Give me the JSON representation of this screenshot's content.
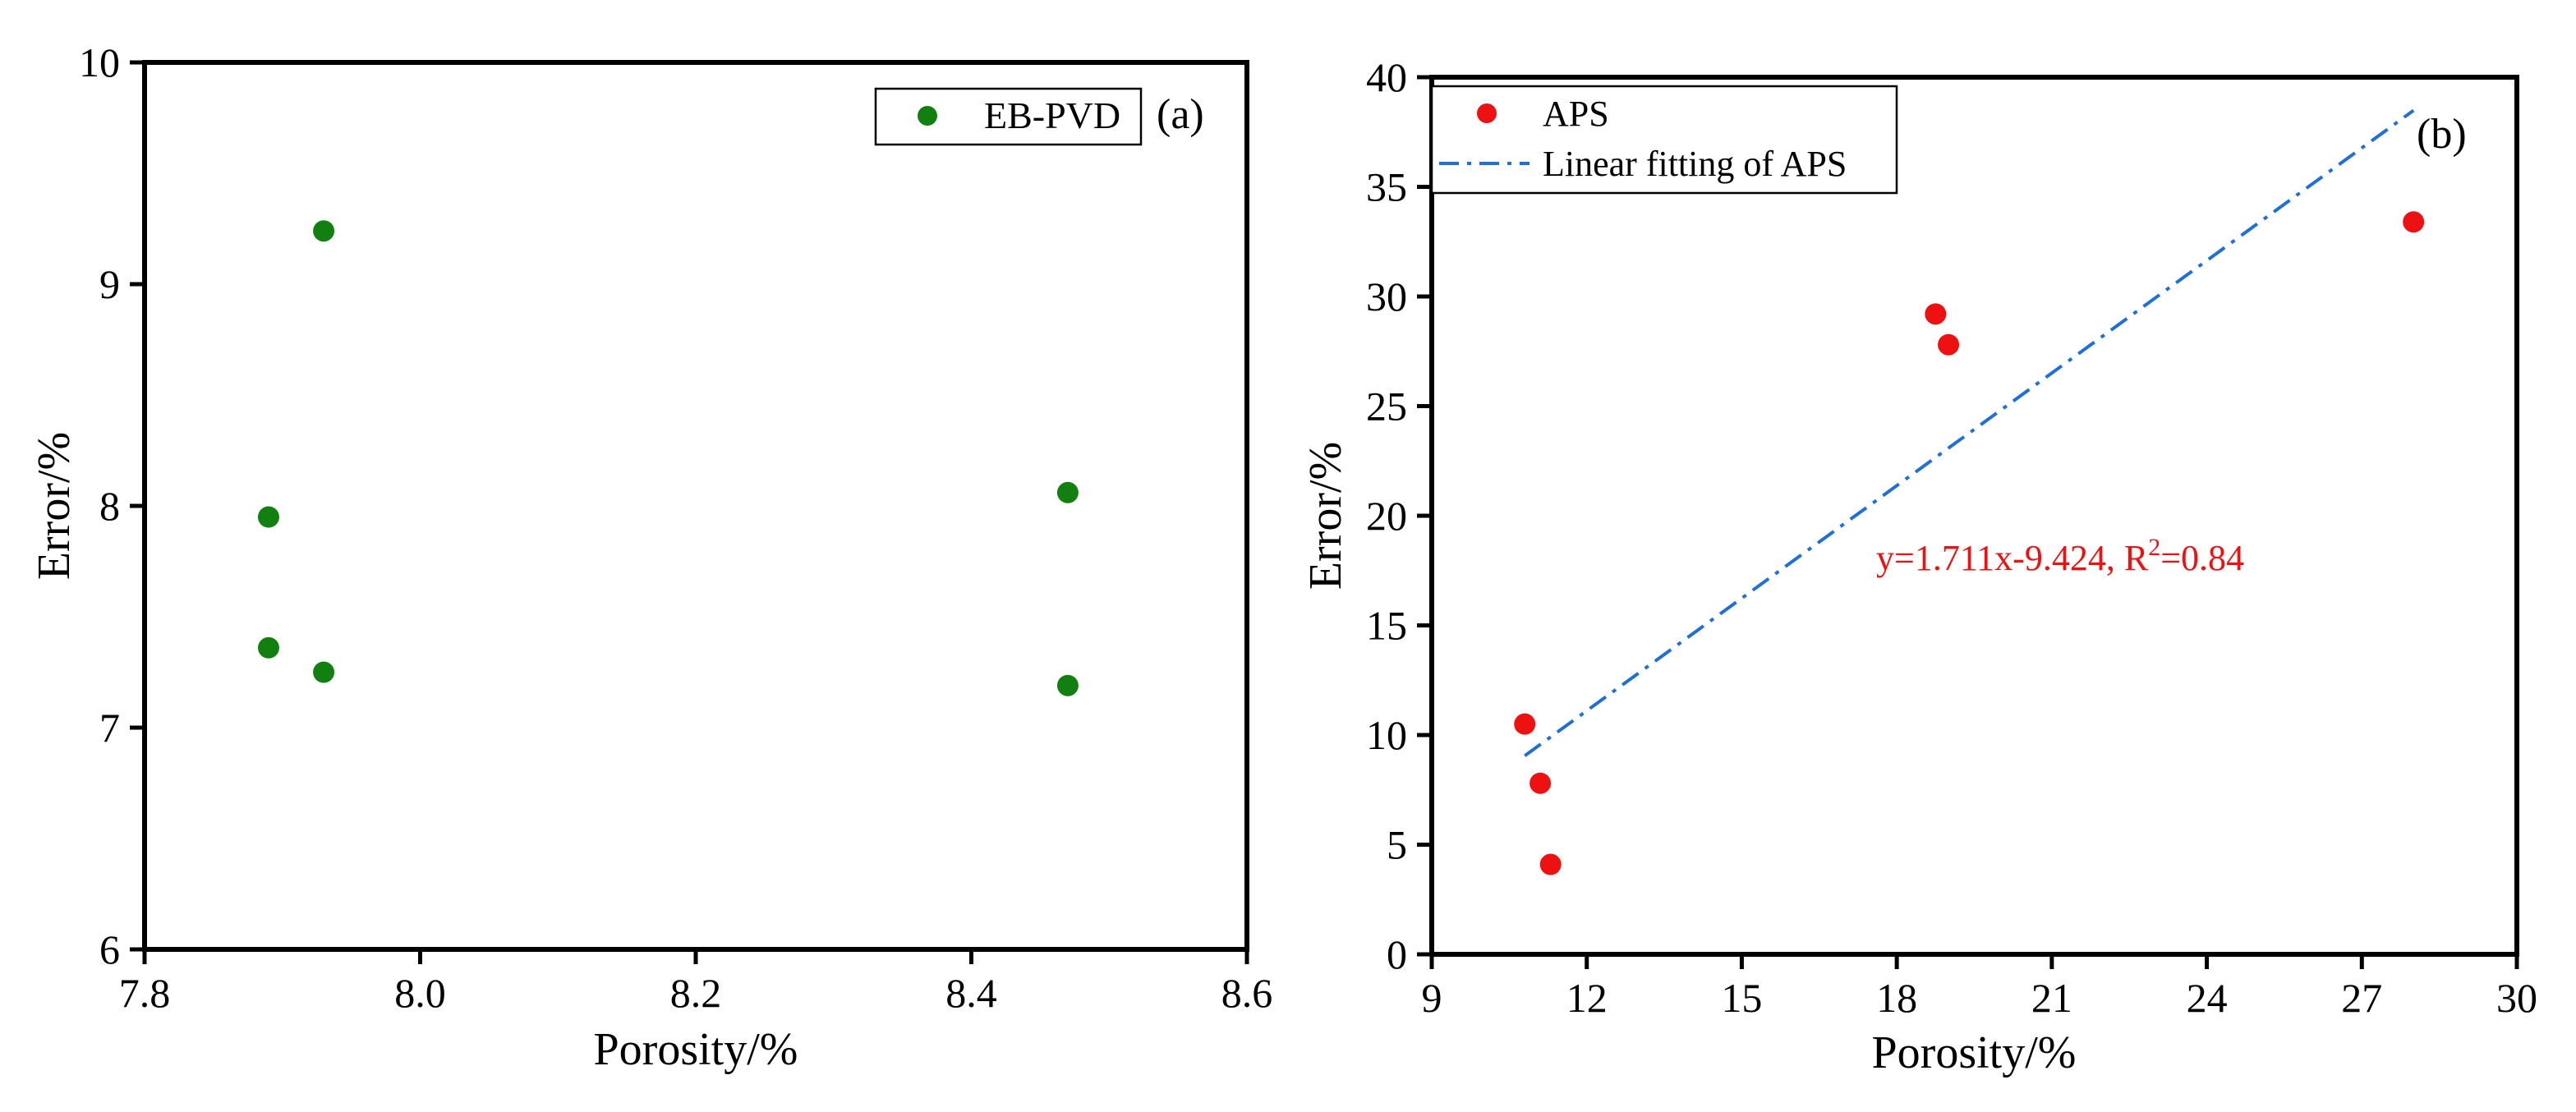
{
  "chart_data": [
    {
      "panel_label": "(a)",
      "type": "scatter",
      "xlabel": "Porosity/%",
      "ylabel": "Error/%",
      "xlim": [
        7.8,
        8.6
      ],
      "ylim": [
        6,
        10
      ],
      "xticks": [
        "7.8",
        "8.0",
        "8.2",
        "8.4",
        "8.6"
      ],
      "yticks": [
        "6",
        "7",
        "8",
        "9",
        "10"
      ],
      "legend_position": "top-right",
      "series": [
        {
          "name": "EB-PVD",
          "color": "#118011",
          "points": [
            {
              "x": 7.89,
              "y": 7.95
            },
            {
              "x": 7.89,
              "y": 7.36
            },
            {
              "x": 7.93,
              "y": 9.24
            },
            {
              "x": 7.93,
              "y": 7.25
            },
            {
              "x": 8.47,
              "y": 8.06
            },
            {
              "x": 8.47,
              "y": 7.19
            }
          ]
        }
      ]
    },
    {
      "panel_label": "(b)",
      "type": "scatter",
      "xlabel": "Porosity/%",
      "ylabel": "Error/%",
      "xlim": [
        9,
        30
      ],
      "ylim": [
        0,
        40
      ],
      "xticks": [
        "9",
        "12",
        "15",
        "18",
        "21",
        "24",
        "27",
        "30"
      ],
      "yticks": [
        "0",
        "5",
        "10",
        "15",
        "20",
        "25",
        "30",
        "35",
        "40"
      ],
      "legend_position": "top-left",
      "series": [
        {
          "name": "APS",
          "color": "#ee1111",
          "points": [
            {
              "x": 10.8,
              "y": 10.5
            },
            {
              "x": 11.1,
              "y": 7.8
            },
            {
              "x": 11.3,
              "y": 4.1
            },
            {
              "x": 18.75,
              "y": 29.2
            },
            {
              "x": 19.0,
              "y": 27.8
            },
            {
              "x": 28.0,
              "y": 33.4
            }
          ]
        }
      ],
      "fit": {
        "name": "Linear fitting of APS",
        "color": "#1f6fd6",
        "slope": 1.711,
        "intercept": -9.424,
        "x_range": [
          10.8,
          28.0
        ]
      },
      "annotation": {
        "prefix": "y=1.711x-9.424, R",
        "sup": "2",
        "suffix": "=0.84",
        "color": "#ee1111"
      }
    }
  ]
}
